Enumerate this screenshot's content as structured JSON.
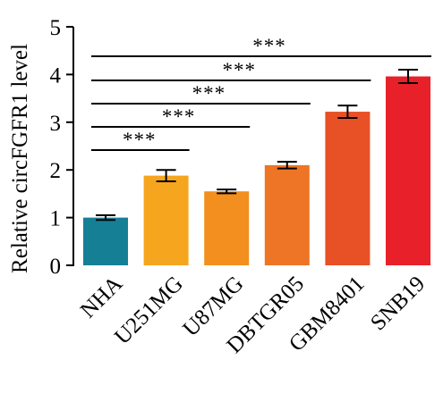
{
  "chart_data": {
    "type": "bar",
    "title": "",
    "xlabel": "",
    "ylabel": "Relative circFGFR1 level",
    "ylim": [
      0,
      5
    ],
    "yticks": [
      0,
      1,
      2,
      3,
      4,
      5
    ],
    "grid": false,
    "legend": "none",
    "categories": [
      "NHA",
      "U251MG",
      "U87MG",
      "DBTGR05",
      "GBM8401",
      "SNB19"
    ],
    "values": [
      1.0,
      1.88,
      1.55,
      2.1,
      3.22,
      3.96
    ],
    "errors": [
      0.05,
      0.12,
      0.04,
      0.07,
      0.13,
      0.14
    ],
    "colors": [
      "#157f96",
      "#f6a51e",
      "#f28f1f",
      "#ee7526",
      "#e85026",
      "#e8202a"
    ],
    "significance": [
      {
        "from": "NHA",
        "to": "U251MG",
        "label": "***"
      },
      {
        "from": "NHA",
        "to": "U87MG",
        "label": "***"
      },
      {
        "from": "NHA",
        "to": "DBTGR05",
        "label": "***"
      },
      {
        "from": "NHA",
        "to": "GBM8401",
        "label": "***"
      },
      {
        "from": "NHA",
        "to": "SNB19",
        "label": "***"
      }
    ]
  }
}
